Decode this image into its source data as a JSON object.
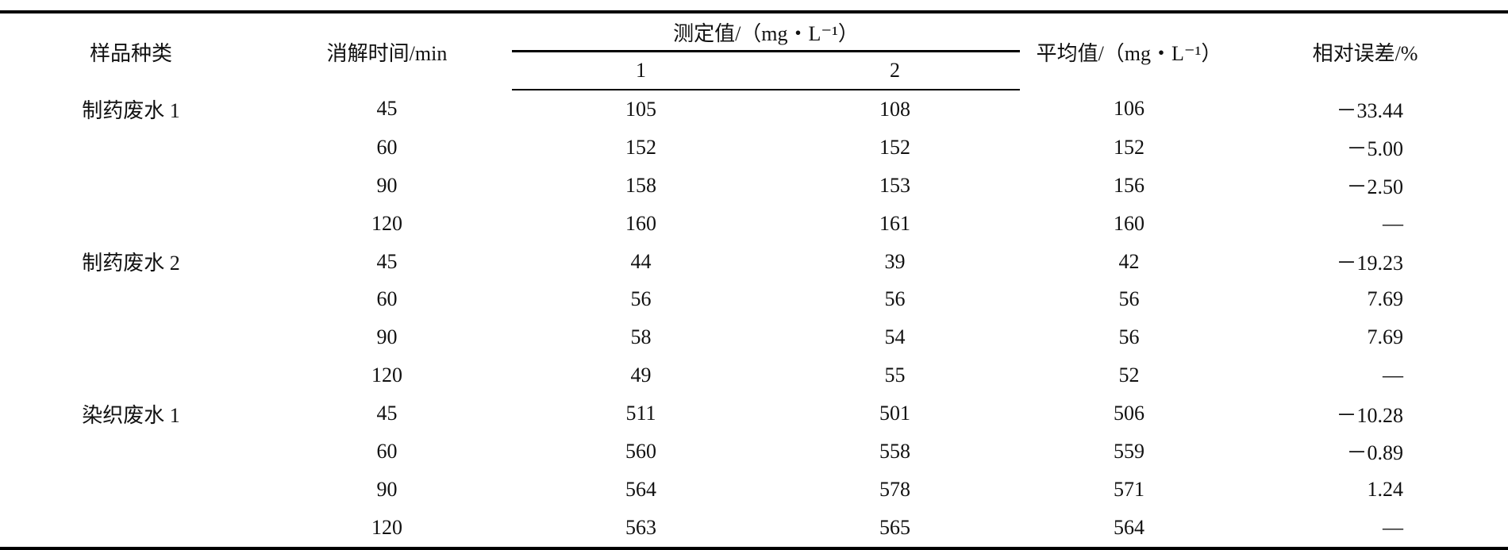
{
  "table": {
    "headers": {
      "sample_type": "样品种类",
      "digestion_time": "消解时间/min",
      "measured": "测定值/（mg・L⁻¹）",
      "measured_1": "1",
      "measured_2": "2",
      "average": "平均值/（mg・L⁻¹）",
      "relative_error": "相对误差/%"
    },
    "rows": [
      {
        "sample": "制药废水 1",
        "time": "45",
        "m1": "105",
        "m2": "108",
        "avg": "106",
        "err": "－33.44"
      },
      {
        "sample": "",
        "time": "60",
        "m1": "152",
        "m2": "152",
        "avg": "152",
        "err": "－5.00"
      },
      {
        "sample": "",
        "time": "90",
        "m1": "158",
        "m2": "153",
        "avg": "156",
        "err": "－2.50"
      },
      {
        "sample": "",
        "time": "120",
        "m1": "160",
        "m2": "161",
        "avg": "160",
        "err": "—"
      },
      {
        "sample": "制药废水 2",
        "time": "45",
        "m1": "44",
        "m2": "39",
        "avg": "42",
        "err": "－19.23"
      },
      {
        "sample": "",
        "time": "60",
        "m1": "56",
        "m2": "56",
        "avg": "56",
        "err": "7.69"
      },
      {
        "sample": "",
        "time": "90",
        "m1": "58",
        "m2": "54",
        "avg": "56",
        "err": "7.69"
      },
      {
        "sample": "",
        "time": "120",
        "m1": "49",
        "m2": "55",
        "avg": "52",
        "err": "—"
      },
      {
        "sample": "染织废水 1",
        "time": "45",
        "m1": "511",
        "m2": "501",
        "avg": "506",
        "err": "－10.28"
      },
      {
        "sample": "",
        "time": "60",
        "m1": "560",
        "m2": "558",
        "avg": "559",
        "err": "－0.89"
      },
      {
        "sample": "",
        "time": "90",
        "m1": "564",
        "m2": "578",
        "avg": "571",
        "err": "1.24"
      },
      {
        "sample": "",
        "time": "120",
        "m1": "563",
        "m2": "565",
        "avg": "564",
        "err": "—"
      }
    ]
  }
}
